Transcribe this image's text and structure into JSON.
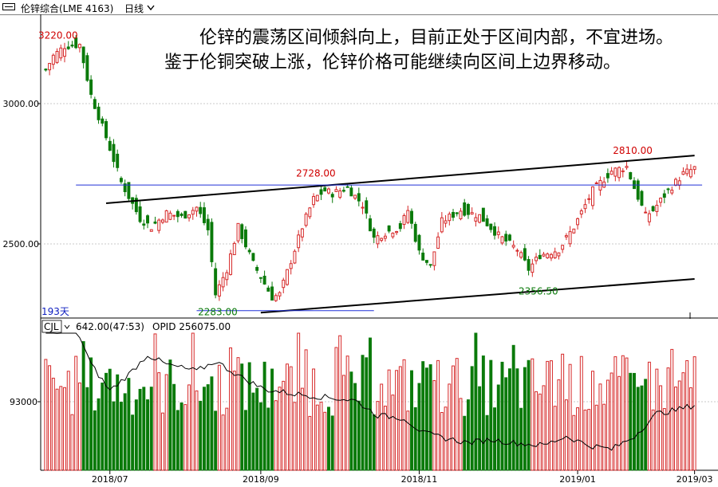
{
  "toolbar": {
    "title": "伦锌综合(LME 4163)",
    "period": "日线",
    "icons": [
      "kline-window-icon",
      "chevron-down-icon"
    ]
  },
  "annotation": "伦锌的震荡区间倾斜向上，目前正处于区间内部，不宜进场。鉴于伦铜突破上涨，伦锌价格可能继续向区间上边界移动。",
  "colors": {
    "up": "#d62828",
    "down": "#0a7a0a",
    "line": "#000000",
    "blue_line": "#2030d8",
    "grid": "#c8c8c8",
    "label_red": "#d00000",
    "label_green": "#0a7a0a",
    "blue_text": "#1020c0"
  },
  "chart_data": [
    {
      "type": "candlestick",
      "title": "伦锌综合(LME 4163)",
      "period": "日线",
      "ylim": [
        2180,
        3280
      ],
      "y_ticks": [
        3000,
        2500
      ],
      "y_tick_labels": [
        "3000.00",
        "2500.00"
      ],
      "x_tick_labels": [
        "2018/07",
        "2018/09",
        "2018/11",
        "2019/01",
        "2019/03"
      ],
      "bar_count_label": "193天",
      "annotations": [
        {
          "text": "3220.00",
          "value": 3220,
          "kind": "high",
          "color": "red"
        },
        {
          "text": "2728.00",
          "value": 2728,
          "kind": "high",
          "color": "red"
        },
        {
          "text": "2810.00",
          "value": 2810,
          "kind": "high",
          "color": "red"
        },
        {
          "text": "2283.00",
          "value": 2283,
          "kind": "low",
          "color": "green"
        },
        {
          "text": "2356.50",
          "value": 2356.5,
          "kind": "low",
          "color": "green"
        }
      ],
      "trendlines": [
        {
          "name": "upper-channel",
          "color": "black",
          "from": [
            16,
            2645
          ],
          "to": [
            172,
            2815
          ]
        },
        {
          "name": "lower-channel",
          "color": "black",
          "from": [
            57,
            2255
          ],
          "to": [
            172,
            2375
          ]
        },
        {
          "name": "horizontal-resistance",
          "color": "blue",
          "from": [
            8,
            2710
          ],
          "to": [
            174,
            2710
          ]
        },
        {
          "name": "horizontal-support",
          "color": "blue",
          "from": [
            40,
            2262
          ],
          "to": [
            87,
            2262
          ]
        }
      ],
      "close_anchors": [
        [
          0,
          3120
        ],
        [
          2,
          3170
        ],
        [
          5,
          3205
        ],
        [
          9,
          3210
        ],
        [
          10,
          3150
        ],
        [
          12,
          3030
        ],
        [
          16,
          2880
        ],
        [
          20,
          2720
        ],
        [
          25,
          2590
        ],
        [
          28,
          2560
        ],
        [
          32,
          2610
        ],
        [
          36,
          2595
        ],
        [
          40,
          2630
        ],
        [
          43,
          2550
        ],
        [
          45,
          2320
        ],
        [
          48,
          2410
        ],
        [
          51,
          2560
        ],
        [
          55,
          2430
        ],
        [
          60,
          2310
        ],
        [
          62,
          2320
        ],
        [
          65,
          2440
        ],
        [
          68,
          2560
        ],
        [
          71,
          2660
        ],
        [
          74,
          2690
        ],
        [
          76,
          2680
        ],
        [
          80,
          2700
        ],
        [
          84,
          2640
        ],
        [
          87,
          2520
        ],
        [
          90,
          2540
        ],
        [
          94,
          2560
        ],
        [
          96,
          2620
        ],
        [
          99,
          2470
        ],
        [
          102,
          2420
        ],
        [
          105,
          2580
        ],
        [
          110,
          2620
        ],
        [
          115,
          2600
        ],
        [
          120,
          2530
        ],
        [
          125,
          2480
        ],
        [
          128,
          2410
        ],
        [
          131,
          2460
        ],
        [
          136,
          2480
        ],
        [
          140,
          2560
        ],
        [
          145,
          2690
        ],
        [
          150,
          2760
        ],
        [
          154,
          2775
        ],
        [
          156,
          2700
        ],
        [
          159,
          2600
        ],
        [
          161,
          2620
        ],
        [
          165,
          2690
        ],
        [
          169,
          2750
        ],
        [
          172,
          2770
        ]
      ]
    },
    {
      "type": "bar",
      "name_label": "CJL",
      "volume_label": "642.00(47:53)",
      "opid_label": "OPID 256075.00",
      "y_ticks": [
        93000
      ],
      "y_tick_labels": [
        "93000"
      ],
      "ylim": [
        18000,
        220000
      ],
      "opid_anchors": [
        [
          0,
          205000
        ],
        [
          5,
          200000
        ],
        [
          8,
          208000
        ],
        [
          12,
          150000
        ],
        [
          17,
          110000
        ],
        [
          22,
          135000
        ],
        [
          27,
          165000
        ],
        [
          32,
          150000
        ],
        [
          40,
          140000
        ],
        [
          45,
          155000
        ],
        [
          52,
          130000
        ],
        [
          58,
          112000
        ],
        [
          66,
          105000
        ],
        [
          74,
          100000
        ],
        [
          82,
          95000
        ],
        [
          88,
          72000
        ],
        [
          95,
          68000
        ],
        [
          100,
          45000
        ],
        [
          106,
          37000
        ],
        [
          112,
          30000
        ],
        [
          118,
          35000
        ],
        [
          124,
          30000
        ],
        [
          132,
          26000
        ],
        [
          138,
          40000
        ],
        [
          144,
          26000
        ],
        [
          150,
          20000
        ],
        [
          156,
          40000
        ],
        [
          162,
          75000
        ],
        [
          167,
          80000
        ],
        [
          172,
          88000
        ]
      ]
    }
  ]
}
